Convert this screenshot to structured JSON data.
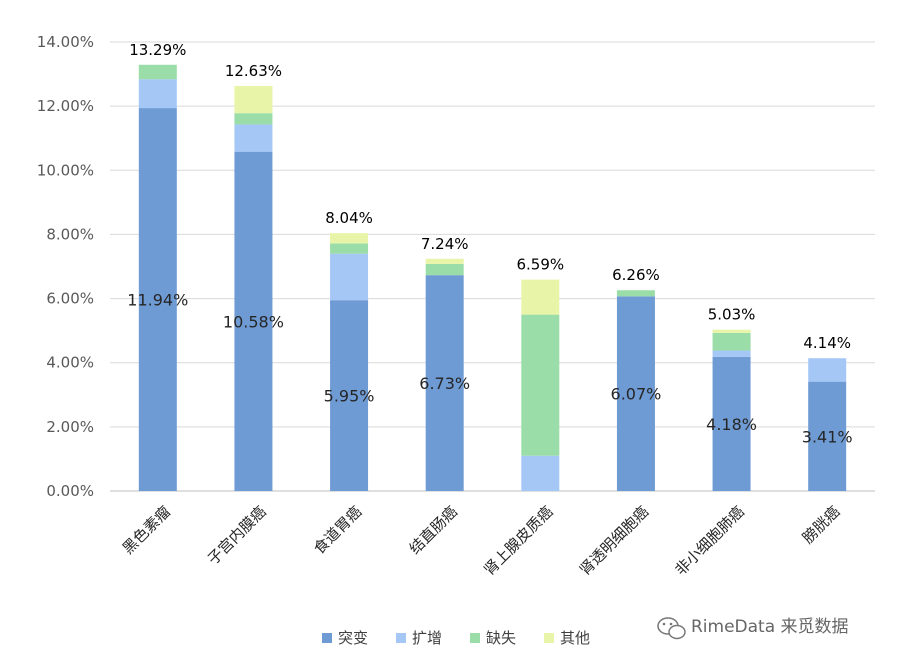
{
  "chart_data": {
    "type": "bar",
    "stacked": true,
    "categories": [
      "黑色素瘤",
      "子宫内膜癌",
      "食道胃癌",
      "结直肠癌",
      "肾上腺皮质癌",
      "肾透明细胞癌",
      "非小细胞肺癌",
      "膀胱癌"
    ],
    "series": [
      {
        "name": "突变",
        "color": "#6f9bd5",
        "values": [
          11.94,
          10.58,
          5.95,
          6.73,
          0.0,
          6.07,
          4.18,
          3.41
        ],
        "labels": [
          "11.94%",
          "10.58%",
          "5.95%",
          "6.73%",
          "",
          "6.07%",
          "4.18%",
          "3.41%"
        ]
      },
      {
        "name": "扩增",
        "color": "#a4c7f6",
        "values": [
          0.9,
          0.85,
          1.45,
          0.0,
          1.1,
          0.0,
          0.2,
          0.73
        ]
      },
      {
        "name": "缺失",
        "color": "#9bdda8",
        "values": [
          0.45,
          0.35,
          0.32,
          0.35,
          4.4,
          0.19,
          0.55,
          0.0
        ]
      },
      {
        "name": "其他",
        "color": "#e8f5a8",
        "values": [
          0.0,
          0.85,
          0.32,
          0.16,
          1.09,
          0.0,
          0.1,
          0.0
        ]
      }
    ],
    "totals": [
      13.29,
      12.63,
      8.04,
      7.24,
      6.59,
      6.26,
      5.03,
      4.14
    ],
    "total_labels": [
      "13.29%",
      "12.63%",
      "8.04%",
      "7.24%",
      "6.59%",
      "6.26%",
      "5.03%",
      "4.14%"
    ],
    "y_ticks": [
      "0.00%",
      "2.00%",
      "4.00%",
      "6.00%",
      "8.00%",
      "10.00%",
      "12.00%",
      "14.00%"
    ],
    "ylim": [
      0,
      14
    ],
    "grid": true,
    "legend_position": "bottom",
    "title": "",
    "xlabel": "",
    "ylabel": ""
  },
  "watermark": {
    "text": "RimeData 来觅数据",
    "icon": "wechat-icon"
  }
}
